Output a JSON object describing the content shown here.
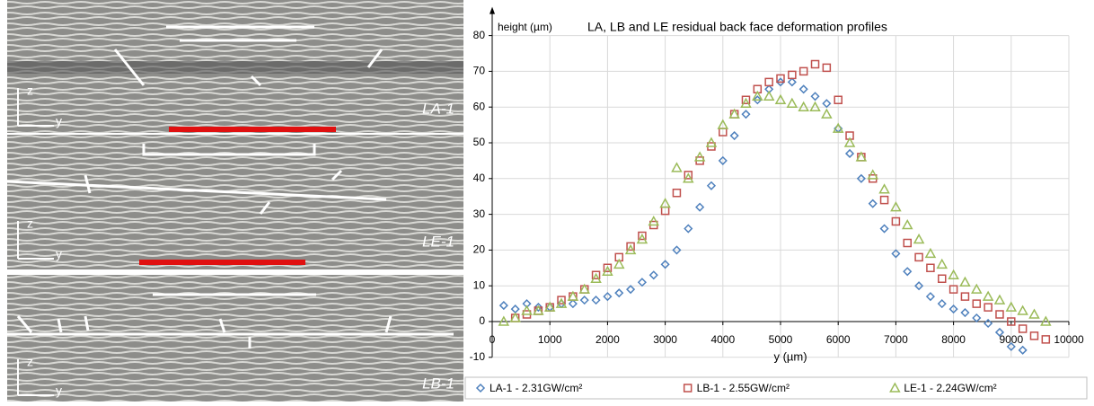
{
  "panels": [
    {
      "label": "LA-1",
      "z": "z",
      "y": "y"
    },
    {
      "label": "LE-1",
      "z": "z",
      "y": "y"
    },
    {
      "label": "LB-1",
      "z": "z",
      "y": "y"
    }
  ],
  "chart_data": {
    "type": "scatter",
    "title": "LA, LB and LE residual back face deformation profiles",
    "y_label": "height (µm)",
    "x_label": "y (µm)",
    "xlim": [
      0,
      10000
    ],
    "ylim": [
      -10,
      80
    ],
    "xticks": [
      0,
      1000,
      2000,
      3000,
      4000,
      5000,
      6000,
      7000,
      8000,
      9000,
      10000
    ],
    "yticks": [
      -10,
      0,
      10,
      20,
      30,
      40,
      50,
      60,
      70,
      80
    ],
    "grid": true,
    "legend": "bottom",
    "series": [
      {
        "name": "LA-1 - 2.31GW/cm²",
        "color": "#4f81bd",
        "marker": "diamond",
        "x": [
          200,
          400,
          600,
          800,
          1000,
          1200,
          1400,
          1600,
          1800,
          2000,
          2200,
          2400,
          2600,
          2800,
          3000,
          3200,
          3400,
          3600,
          3800,
          4000,
          4200,
          4400,
          4600,
          4800,
          5000,
          5200,
          5400,
          5600,
          5800,
          6000,
          6200,
          6400,
          6600,
          6800,
          7000,
          7200,
          7400,
          7600,
          7800,
          8000,
          8200,
          8400,
          8600,
          8800,
          9000,
          9200
        ],
        "values": [
          4.5,
          3.5,
          5,
          4,
          4,
          5,
          5,
          6,
          6,
          7,
          8,
          9,
          11,
          13,
          16,
          20,
          26,
          32,
          38,
          45,
          52,
          58,
          62,
          65,
          67,
          67,
          65,
          63,
          61,
          54,
          47,
          40,
          33,
          26,
          19,
          14,
          10,
          7,
          5,
          3.5,
          2.5,
          1,
          -0.5,
          -3,
          -7,
          -8
        ]
      },
      {
        "name": "LB-1 - 2.55GW/cm²",
        "color": "#c0504d",
        "marker": "square",
        "x": [
          400,
          600,
          800,
          1000,
          1200,
          1400,
          1600,
          1800,
          2000,
          2200,
          2400,
          2600,
          2800,
          3000,
          3200,
          3400,
          3600,
          3800,
          4000,
          4200,
          4400,
          4600,
          4800,
          5000,
          5200,
          5400,
          5600,
          5800,
          6000,
          6200,
          6400,
          6600,
          6800,
          7000,
          7200,
          7400,
          7600,
          7800,
          8000,
          8200,
          8400,
          8600,
          8800,
          9000,
          9200,
          9400,
          9600
        ],
        "values": [
          1,
          2,
          3,
          4,
          6,
          7,
          9,
          13,
          15,
          18,
          21,
          24,
          27,
          31,
          36,
          41,
          45,
          49,
          53,
          58,
          62,
          65,
          67,
          68,
          69,
          70,
          72,
          71,
          62,
          52,
          46,
          40,
          34,
          28,
          22,
          18,
          15,
          12,
          9,
          7,
          5,
          4,
          2,
          0,
          -2,
          -4,
          -5
        ]
      },
      {
        "name": "LE-1 - 2.24GW/cm²",
        "color": "#9bbb59",
        "marker": "triangle",
        "x": [
          200,
          400,
          600,
          800,
          1000,
          1200,
          1400,
          1600,
          1800,
          2000,
          2200,
          2400,
          2600,
          2800,
          3000,
          3200,
          3400,
          3600,
          3800,
          4000,
          4200,
          4400,
          4600,
          4800,
          5000,
          5200,
          5400,
          5600,
          5800,
          6000,
          6200,
          6400,
          6600,
          6800,
          7000,
          7200,
          7400,
          7600,
          7800,
          8000,
          8200,
          8400,
          8600,
          8800,
          9000,
          9200,
          9400,
          9600
        ],
        "values": [
          0,
          1,
          3,
          3,
          4,
          5,
          7,
          9,
          12,
          14,
          16,
          20,
          23,
          28,
          33,
          43,
          40,
          46,
          50,
          55,
          58,
          61,
          63,
          63,
          62,
          61,
          60,
          60,
          58,
          54,
          50,
          46,
          41,
          37,
          32,
          27,
          23,
          19,
          16,
          13,
          11,
          9,
          7,
          6,
          4,
          3,
          2,
          0
        ]
      }
    ]
  }
}
